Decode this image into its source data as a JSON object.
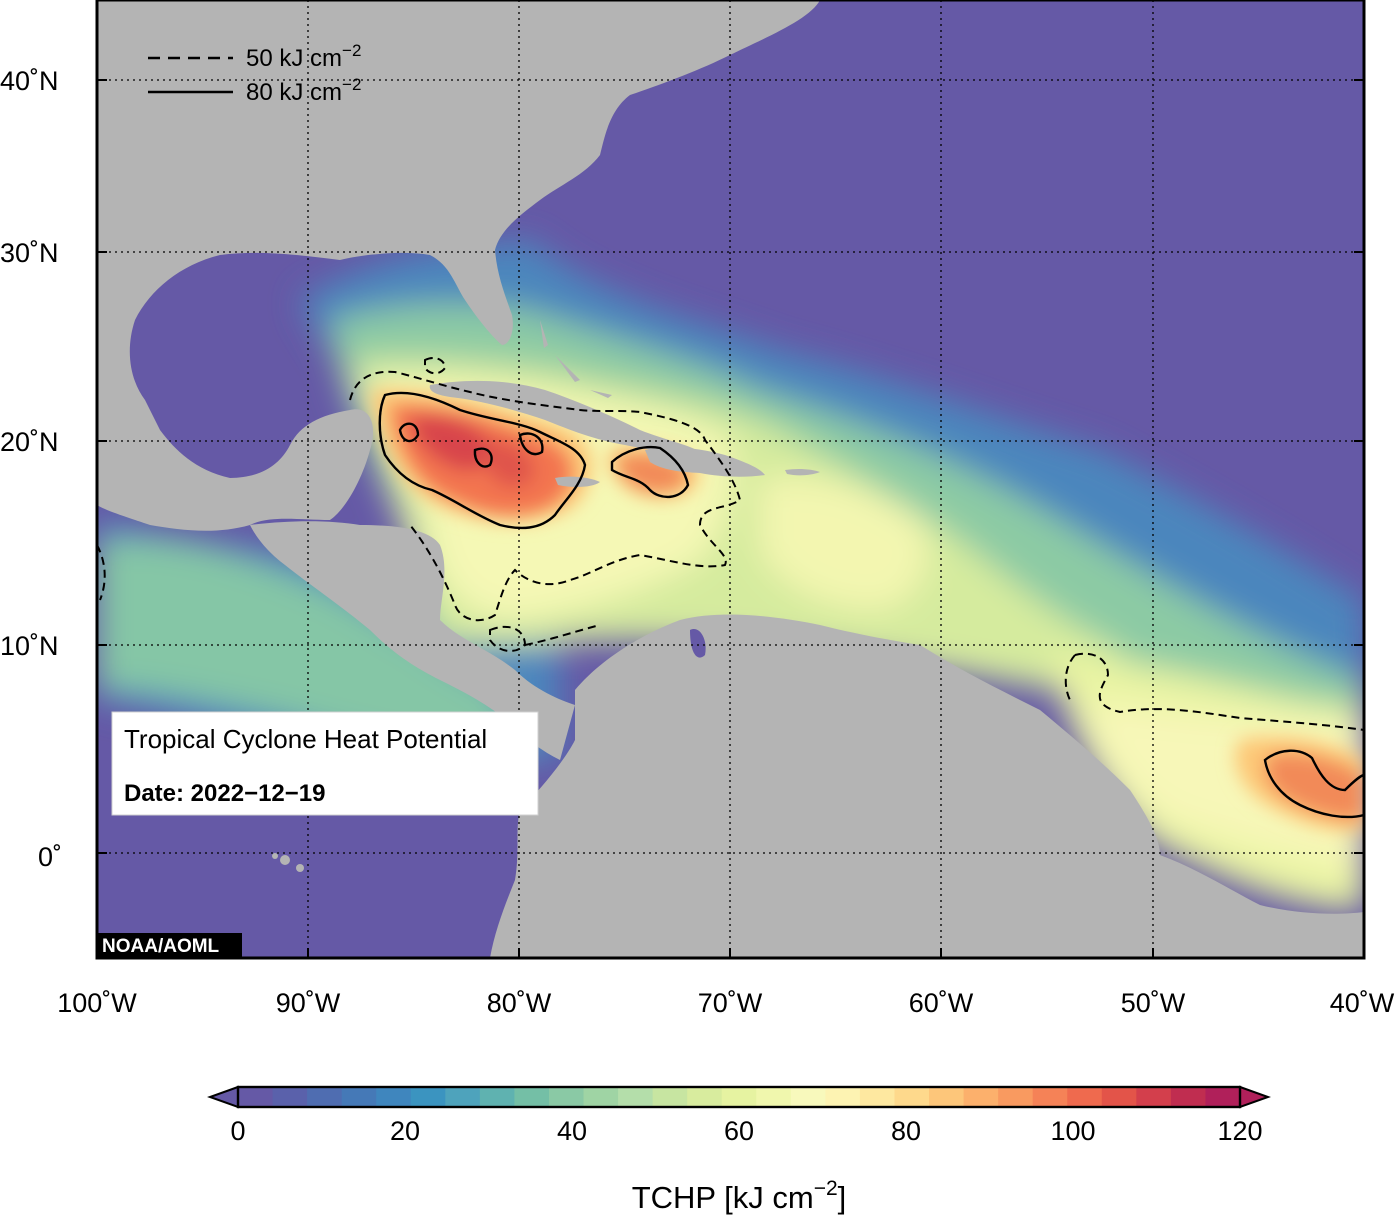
{
  "map": {
    "title": "Tropical Cyclone Heat Potential",
    "date_label": "Date: 2022−12−19",
    "credit": "NOAA/AOML",
    "extent": {
      "lon_min": -100,
      "lon_max": -40,
      "lat_min": -5,
      "lat_max": 45
    },
    "lon_ticks": [
      {
        "value": -100,
        "label": "100˚W"
      },
      {
        "value": -90,
        "label": "90˚W"
      },
      {
        "value": -80,
        "label": "80˚W"
      },
      {
        "value": -70,
        "label": "70˚W"
      },
      {
        "value": -60,
        "label": "60˚W"
      },
      {
        "value": -50,
        "label": "50˚W"
      },
      {
        "value": -40,
        "label": "40˚W"
      }
    ],
    "lat_ticks": [
      {
        "value": 40,
        "label": "40˚N"
      },
      {
        "value": 30,
        "label": "30˚N"
      },
      {
        "value": 20,
        "label": "20˚N"
      },
      {
        "value": 10,
        "label": "10˚N"
      },
      {
        "value": 0,
        "label": "0˚"
      }
    ],
    "contour_legend": [
      {
        "style": "dashed",
        "value": "50",
        "unit": "kJ cm",
        "exp": "−2"
      },
      {
        "style": "solid",
        "value": "80",
        "unit": "kJ cm",
        "exp": "−2"
      }
    ],
    "colors": {
      "land": "#b4b4b4",
      "deep_ocean": "#6559a6",
      "frame": "#000000"
    }
  },
  "colorbar": {
    "min": 0,
    "max": 120,
    "step": 5,
    "tick_labels": [
      "0",
      "20",
      "40",
      "60",
      "80",
      "100",
      "120"
    ],
    "title_main": "TCHP [kJ cm",
    "title_exp": "−2",
    "title_end": "]",
    "colors": [
      "#6559a6",
      "#5a61ab",
      "#4f6db1",
      "#4579b7",
      "#3f86be",
      "#3b94c0",
      "#4ea3bc",
      "#5fb2b0",
      "#74bfa6",
      "#8ac9a5",
      "#9fd4a4",
      "#b4deaa",
      "#c7e5a1",
      "#d8ec9e",
      "#e6f3a1",
      "#f0f7ad",
      "#f8f9bc",
      "#fdf3b2",
      "#fee8a0",
      "#fed98c",
      "#fdc67a",
      "#fcb06c",
      "#f99a60",
      "#f58257",
      "#ef6a4e",
      "#e35449",
      "#d33f4c",
      "#c02d50",
      "#b0205a"
    ]
  }
}
